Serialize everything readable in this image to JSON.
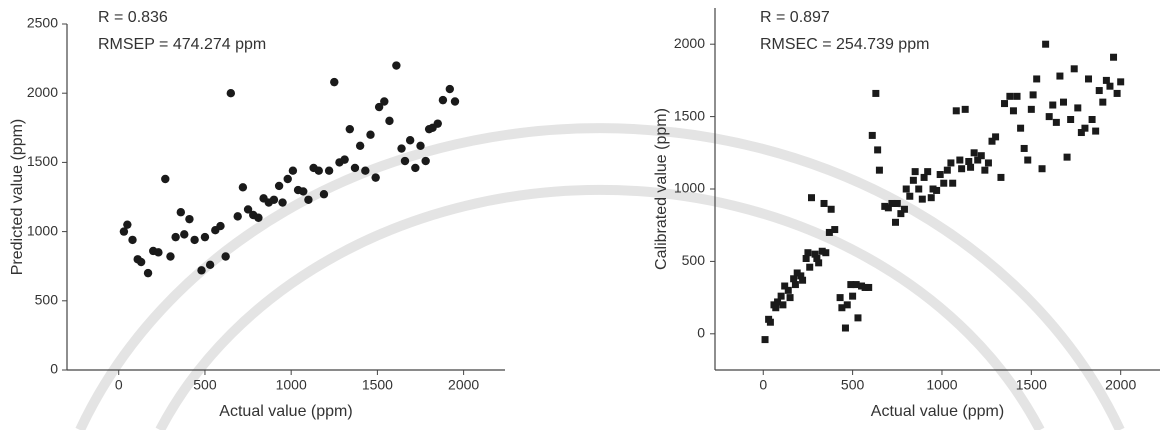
{
  "chart_data": [
    {
      "type": "scatter",
      "marker": "circle",
      "color": "#1a1a1a",
      "annotations": [
        "R = 0.836",
        "RMSEP = 474.274 ppm"
      ],
      "x_label": "Actual value (ppm)",
      "y_label": "Predicted value (ppm)",
      "xlim": [
        -300,
        2240
      ],
      "xticks": [
        0,
        500,
        1000,
        1500,
        2000
      ],
      "ylim": [
        0,
        2500
      ],
      "yticks": [
        0,
        500,
        1000,
        1500,
        2000,
        2500
      ],
      "x": [
        30,
        50,
        80,
        110,
        130,
        170,
        200,
        230,
        270,
        300,
        330,
        360,
        380,
        410,
        440,
        480,
        500,
        530,
        560,
        590,
        620,
        650,
        690,
        720,
        750,
        780,
        810,
        840,
        870,
        900,
        930,
        950,
        980,
        1010,
        1040,
        1070,
        1100,
        1130,
        1160,
        1190,
        1220,
        1250,
        1280,
        1310,
        1340,
        1370,
        1400,
        1430,
        1460,
        1490,
        1510,
        1540,
        1570,
        1610,
        1640,
        1660,
        1690,
        1720,
        1750,
        1780,
        1800,
        1820,
        1850,
        1880,
        1920,
        1950
      ],
      "values": [
        1000,
        1050,
        940,
        800,
        780,
        700,
        860,
        850,
        1380,
        820,
        960,
        1140,
        980,
        1090,
        940,
        720,
        960,
        760,
        1010,
        1040,
        820,
        2000,
        1110,
        1320,
        1160,
        1120,
        1100,
        1240,
        1210,
        1230,
        1330,
        1210,
        1380,
        1440,
        1300,
        1290,
        1230,
        1460,
        1440,
        1270,
        1440,
        2080,
        1500,
        1520,
        1740,
        1460,
        1620,
        1440,
        1700,
        1390,
        1900,
        1940,
        1800,
        2200,
        1600,
        1510,
        1660,
        1460,
        1620,
        1510,
        1740,
        1750,
        1780,
        1950,
        2030,
        1940
      ]
    },
    {
      "type": "scatter",
      "marker": "square",
      "color": "#1a1a1a",
      "annotations": [
        "R = 0.897",
        "RMSEC = 254.739 ppm"
      ],
      "x_label": "Actual value (ppm)",
      "y_label": "Calibrated value (ppm)",
      "xlim": [
        -270,
        2220
      ],
      "xticks": [
        0,
        500,
        1000,
        1500,
        2000
      ],
      "ylim": [
        -250,
        2250
      ],
      "yticks": [
        0,
        500,
        1000,
        1500,
        2000
      ],
      "x": [
        10,
        30,
        40,
        60,
        70,
        80,
        100,
        110,
        120,
        140,
        150,
        170,
        180,
        190,
        210,
        220,
        240,
        250,
        260,
        270,
        290,
        300,
        310,
        330,
        340,
        350,
        370,
        380,
        400,
        430,
        440,
        460,
        470,
        490,
        500,
        520,
        530,
        550,
        570,
        590,
        610,
        630,
        640,
        650,
        680,
        700,
        720,
        740,
        750,
        770,
        790,
        800,
        820,
        840,
        850,
        870,
        890,
        900,
        920,
        940,
        950,
        970,
        990,
        1010,
        1030,
        1050,
        1060,
        1080,
        1100,
        1110,
        1130,
        1150,
        1160,
        1180,
        1200,
        1220,
        1240,
        1260,
        1280,
        1300,
        1330,
        1350,
        1380,
        1400,
        1420,
        1440,
        1460,
        1480,
        1500,
        1510,
        1530,
        1560,
        1580,
        1600,
        1620,
        1640,
        1660,
        1680,
        1700,
        1720,
        1740,
        1760,
        1780,
        1800,
        1820,
        1840,
        1860,
        1880,
        1900,
        1920,
        1940,
        1960,
        1980,
        2000
      ],
      "values": [
        -40,
        100,
        80,
        200,
        180,
        220,
        260,
        200,
        330,
        300,
        250,
        380,
        340,
        420,
        400,
        370,
        520,
        560,
        460,
        940,
        550,
        520,
        490,
        570,
        900,
        560,
        700,
        860,
        720,
        250,
        180,
        40,
        200,
        340,
        260,
        340,
        110,
        330,
        320,
        320,
        1370,
        1660,
        1270,
        1130,
        880,
        870,
        900,
        770,
        900,
        830,
        860,
        1000,
        950,
        1060,
        1120,
        1000,
        930,
        1080,
        1120,
        940,
        1000,
        990,
        1100,
        1040,
        1130,
        1180,
        1040,
        1540,
        1200,
        1140,
        1550,
        1190,
        1150,
        1250,
        1200,
        1230,
        1130,
        1180,
        1330,
        1360,
        1080,
        1590,
        1640,
        1540,
        1640,
        1420,
        1280,
        1200,
        1550,
        1650,
        1760,
        1140,
        2000,
        1500,
        1580,
        1460,
        1780,
        1600,
        1220,
        1480,
        1830,
        1560,
        1390,
        1420,
        1760,
        1480,
        1400,
        1680,
        1600,
        1750,
        1710,
        1910,
        1660,
        1740
      ]
    }
  ]
}
